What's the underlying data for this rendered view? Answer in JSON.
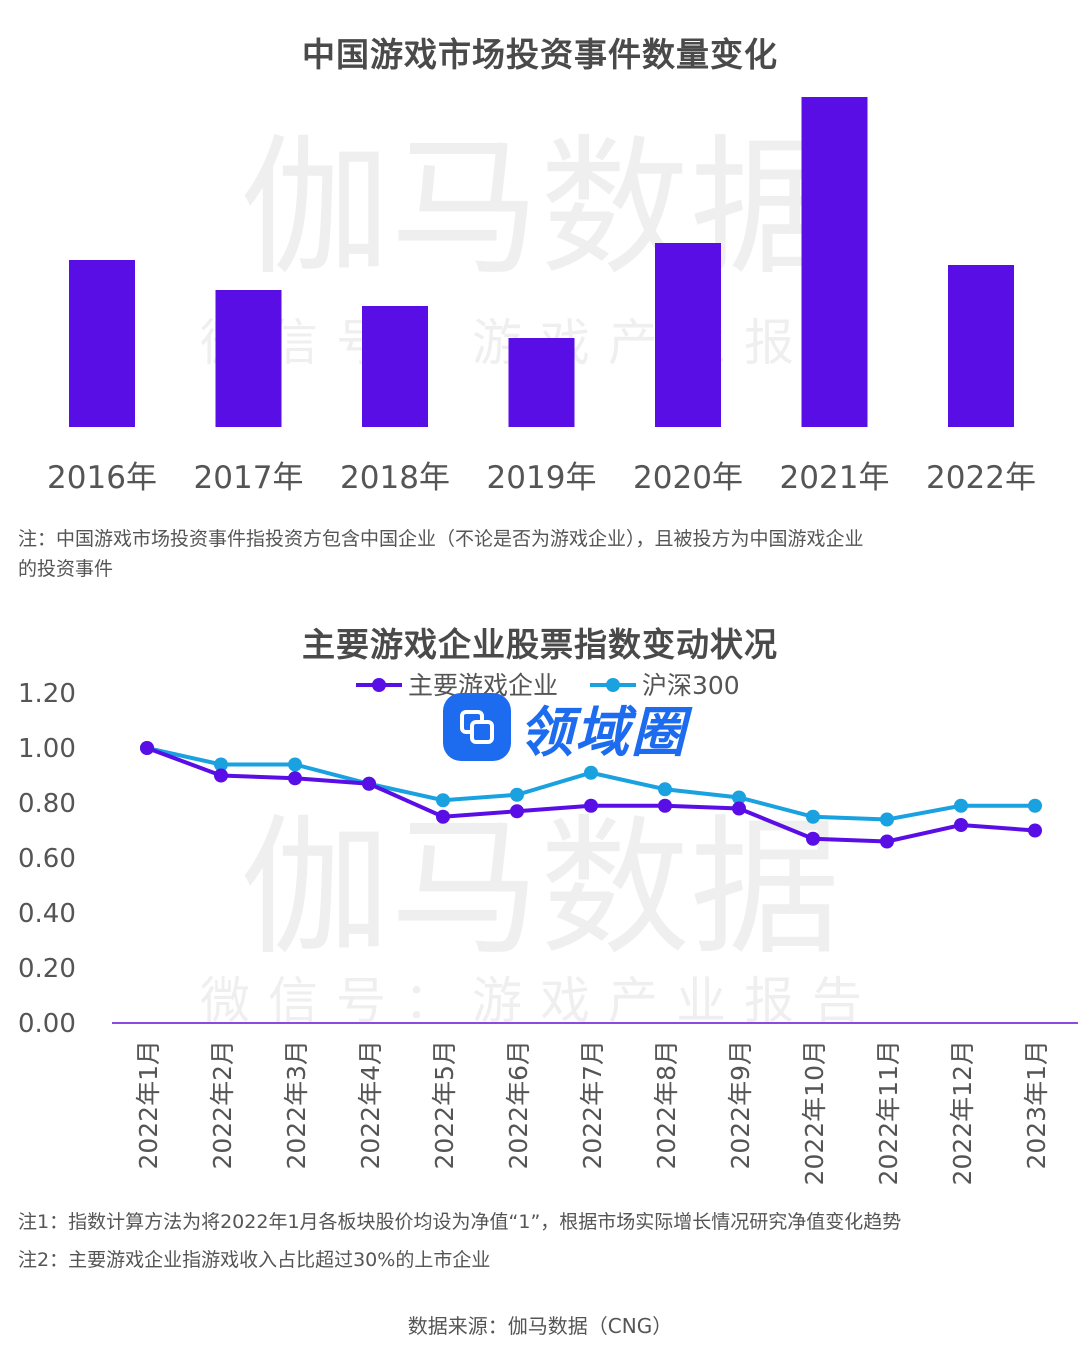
{
  "chart1": {
    "title": "中国游戏市场投资事件数量变化",
    "note": "注：中国游戏市场投资事件指投资方包含中国企业（不论是否为游戏企业），且被投方为中国游戏企业的投资事件"
  },
  "chart2": {
    "title": "主要游戏企业股票指数变动状况",
    "note1": "注1：指数计算方法为将2022年1月各板块股价均设为净值“1”，根据市场实际增长情况研究净值变化趋势",
    "note2": "注2：主要游戏企业指游戏收入占比超过30%的上市企业"
  },
  "source": "数据来源：伽马数据（CNG）",
  "watermark": {
    "big": "伽马数据",
    "small": "微信号：游戏产业报告"
  },
  "logo": {
    "text": "领域圈",
    "icon": "app-icon",
    "color": "#1d6cf0"
  },
  "colors": {
    "bar": "#5a0ee6",
    "series1": "#5a0ee6",
    "series2": "#1aa1e0",
    "axis": "#8b4be0"
  },
  "chart_data": [
    {
      "type": "bar",
      "title": "中国游戏市场投资事件数量变化",
      "categories": [
        "2016年",
        "2017年",
        "2018年",
        "2019年",
        "2020年",
        "2021年",
        "2022年"
      ],
      "values": [
        167,
        137,
        121,
        89,
        184,
        330,
        162
      ],
      "ylim": [
        0,
        330
      ]
    },
    {
      "type": "line",
      "title": "主要游戏企业股票指数变动状况",
      "categories": [
        "2022年1月",
        "2022年2月",
        "2022年3月",
        "2022年4月",
        "2022年5月",
        "2022年6月",
        "2022年7月",
        "2022年8月",
        "2022年9月",
        "2022年10月",
        "2022年11月",
        "2022年12月",
        "2023年1月"
      ],
      "series": [
        {
          "name": "主要游戏企业",
          "values": [
            1.0,
            0.9,
            0.89,
            0.87,
            0.75,
            0.77,
            0.79,
            0.79,
            0.78,
            0.67,
            0.66,
            0.72,
            0.7
          ]
        },
        {
          "name": "沪深300",
          "values": [
            1.0,
            0.94,
            0.94,
            0.87,
            0.81,
            0.83,
            0.91,
            0.85,
            0.82,
            0.75,
            0.74,
            0.79,
            0.79
          ]
        }
      ],
      "yticks": [
        "0.00",
        "0.20",
        "0.40",
        "0.60",
        "0.80",
        "1.00",
        "1.20"
      ],
      "ylim": [
        0,
        1.2
      ],
      "legend": "top-center"
    }
  ]
}
